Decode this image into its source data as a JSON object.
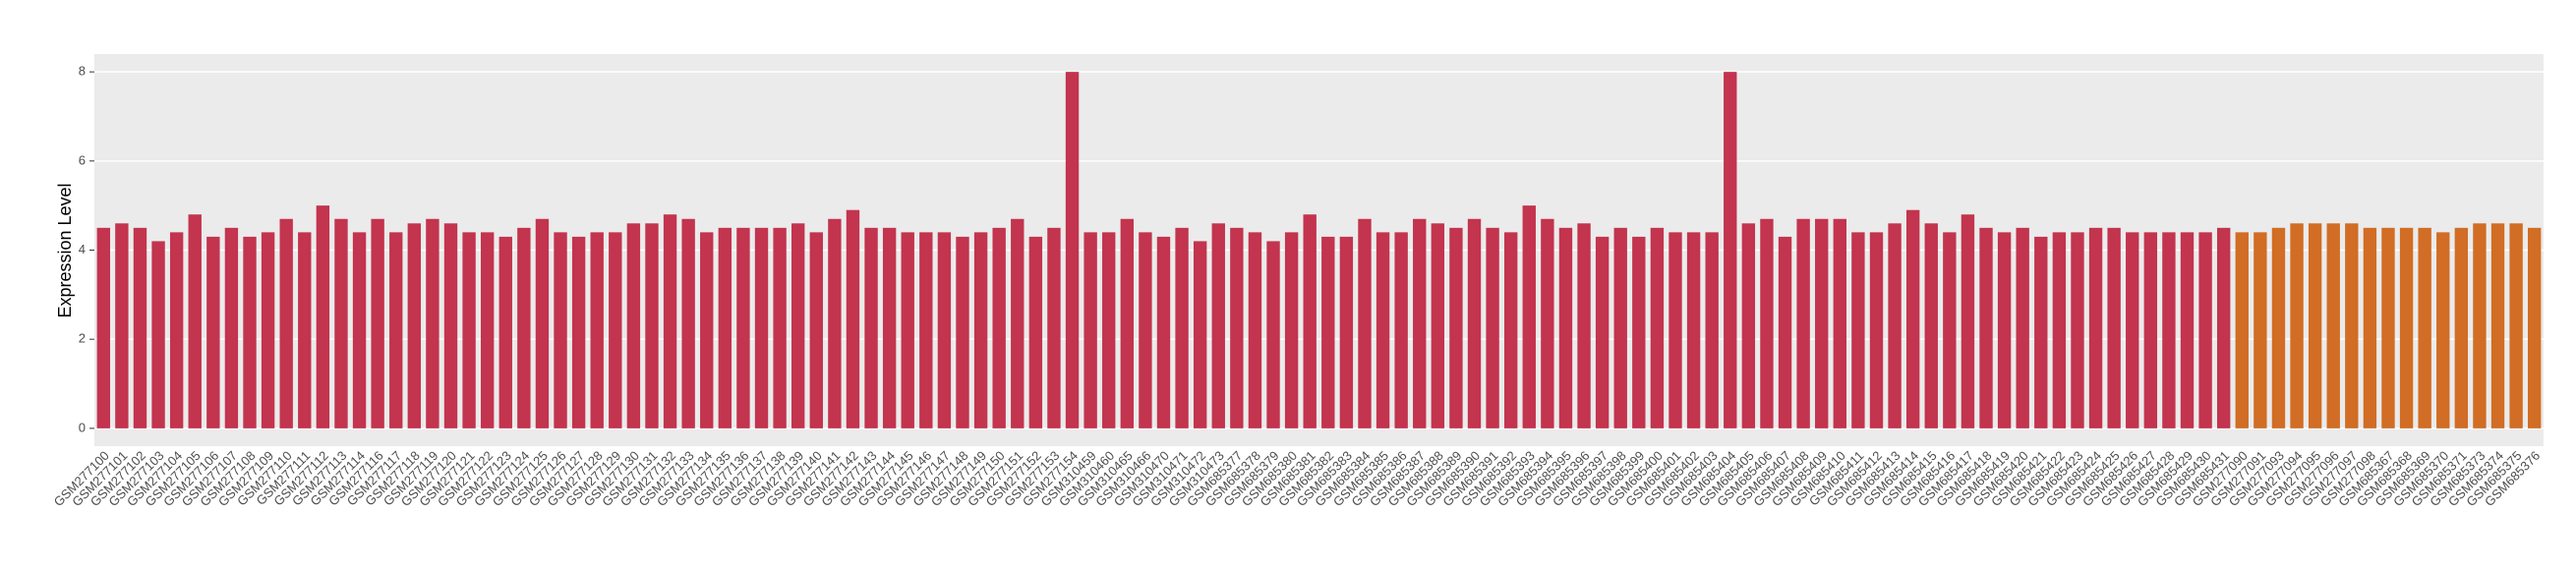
{
  "chart_data": {
    "type": "bar",
    "y_label": "Expression Level",
    "categories": [
      "GSM277100",
      "GSM277101",
      "GSM277102",
      "GSM277103",
      "GSM277104",
      "GSM277105",
      "GSM277106",
      "GSM277107",
      "GSM277108",
      "GSM277109",
      "GSM277110",
      "GSM277111",
      "GSM277112",
      "GSM277113",
      "GSM277114",
      "GSM277116",
      "GSM277117",
      "GSM277118",
      "GSM277119",
      "GSM277120",
      "GSM277121",
      "GSM277122",
      "GSM277123",
      "GSM277124",
      "GSM277125",
      "GSM277126",
      "GSM277127",
      "GSM277128",
      "GSM277129",
      "GSM277130",
      "GSM277131",
      "GSM277132",
      "GSM277133",
      "GSM277134",
      "GSM277135",
      "GSM277136",
      "GSM277137",
      "GSM277138",
      "GSM277139",
      "GSM277140",
      "GSM277141",
      "GSM277142",
      "GSM277143",
      "GSM277144",
      "GSM277145",
      "GSM277146",
      "GSM277147",
      "GSM277148",
      "GSM277149",
      "GSM277150",
      "GSM277151",
      "GSM277152",
      "GSM277153",
      "GSM277154",
      "GSM310459",
      "GSM310460",
      "GSM310465",
      "GSM310466",
      "GSM310470",
      "GSM310471",
      "GSM310472",
      "GSM310473",
      "GSM685377",
      "GSM685378",
      "GSM685379",
      "GSM685380",
      "GSM685381",
      "GSM685382",
      "GSM685383",
      "GSM685384",
      "GSM685385",
      "GSM685386",
      "GSM685387",
      "GSM685388",
      "GSM685389",
      "GSM685390",
      "GSM685391",
      "GSM685392",
      "GSM685393",
      "GSM685394",
      "GSM685395",
      "GSM685396",
      "GSM685397",
      "GSM685398",
      "GSM685399",
      "GSM685400",
      "GSM685401",
      "GSM685402",
      "GSM685403",
      "GSM685404",
      "GSM685405",
      "GSM685406",
      "GSM685407",
      "GSM685408",
      "GSM685409",
      "GSM685410",
      "GSM685411",
      "GSM685412",
      "GSM685413",
      "GSM685414",
      "GSM685415",
      "GSM685416",
      "GSM685417",
      "GSM685418",
      "GSM685419",
      "GSM685420",
      "GSM685421",
      "GSM685422",
      "GSM685423",
      "GSM685424",
      "GSM685425",
      "GSM685426",
      "GSM685427",
      "GSM685428",
      "GSM685429",
      "GSM685430",
      "GSM685431",
      "GSM277090",
      "GSM277091",
      "GSM277093",
      "GSM277094",
      "GSM277095",
      "GSM277096",
      "GSM277097",
      "GSM277098",
      "GSM685367",
      "GSM685368",
      "GSM685369",
      "GSM685370",
      "GSM685371",
      "GSM685373",
      "GSM685374",
      "GSM685375",
      "GSM685376"
    ],
    "values": [
      4.5,
      4.6,
      4.5,
      4.2,
      4.4,
      4.8,
      4.3,
      4.5,
      4.3,
      4.4,
      4.7,
      4.4,
      5.0,
      4.7,
      4.4,
      4.7,
      4.4,
      4.6,
      4.7,
      4.6,
      4.4,
      4.4,
      4.3,
      4.5,
      4.7,
      4.4,
      4.3,
      4.4,
      4.4,
      4.6,
      4.6,
      4.8,
      4.7,
      4.4,
      4.5,
      4.5,
      4.5,
      4.5,
      4.6,
      4.4,
      4.7,
      4.9,
      4.5,
      4.5,
      4.4,
      4.4,
      4.4,
      4.3,
      4.4,
      4.5,
      4.7,
      4.3,
      4.5,
      8.0,
      4.4,
      4.4,
      4.7,
      4.4,
      4.3,
      4.5,
      4.2,
      4.6,
      4.5,
      4.4,
      4.2,
      4.4,
      4.8,
      4.3,
      4.3,
      4.7,
      4.4,
      4.4,
      4.7,
      4.6,
      4.5,
      4.7,
      4.5,
      4.4,
      5.0,
      4.7,
      4.5,
      4.6,
      4.3,
      4.5,
      4.3,
      4.5,
      4.4,
      4.4,
      4.4,
      8.0,
      4.6,
      4.7,
      4.3,
      4.7,
      4.7,
      4.7,
      4.4,
      4.4,
      4.6,
      4.9,
      4.6,
      4.4,
      4.8,
      4.5,
      4.4,
      4.5,
      4.3,
      4.4,
      4.4,
      4.5,
      4.5,
      4.4,
      4.4,
      4.4,
      4.4,
      4.4,
      4.5,
      4.4,
      4.4,
      4.5,
      4.6,
      4.6,
      4.6,
      4.6,
      4.5,
      4.5,
      4.5,
      4.5,
      4.4,
      4.5,
      4.6,
      4.6,
      4.6,
      4.5
    ],
    "colors": [
      "#c3344e",
      "#c3344e",
      "#c3344e",
      "#c3344e",
      "#c3344e",
      "#c3344e",
      "#c3344e",
      "#c3344e",
      "#c3344e",
      "#c3344e",
      "#c3344e",
      "#c3344e",
      "#c3344e",
      "#c3344e",
      "#c3344e",
      "#c3344e",
      "#c3344e",
      "#c3344e",
      "#c3344e",
      "#c3344e",
      "#c3344e",
      "#c3344e",
      "#c3344e",
      "#c3344e",
      "#c3344e",
      "#c3344e",
      "#c3344e",
      "#c3344e",
      "#c3344e",
      "#c3344e",
      "#c3344e",
      "#c3344e",
      "#c3344e",
      "#c3344e",
      "#c3344e",
      "#c3344e",
      "#c3344e",
      "#c3344e",
      "#c3344e",
      "#c3344e",
      "#c3344e",
      "#c3344e",
      "#c3344e",
      "#c3344e",
      "#c3344e",
      "#c3344e",
      "#c3344e",
      "#c3344e",
      "#c3344e",
      "#c3344e",
      "#c3344e",
      "#c3344e",
      "#c3344e",
      "#c3344e",
      "#c3344e",
      "#c3344e",
      "#c3344e",
      "#c3344e",
      "#c3344e",
      "#c3344e",
      "#c3344e",
      "#c3344e",
      "#c3344e",
      "#c3344e",
      "#c3344e",
      "#c3344e",
      "#c3344e",
      "#c3344e",
      "#c3344e",
      "#c3344e",
      "#c3344e",
      "#c3344e",
      "#c3344e",
      "#c3344e",
      "#c3344e",
      "#c3344e",
      "#c3344e",
      "#c3344e",
      "#c3344e",
      "#c3344e",
      "#c3344e",
      "#c3344e",
      "#c3344e",
      "#c3344e",
      "#c3344e",
      "#c3344e",
      "#c3344e",
      "#c3344e",
      "#c3344e",
      "#c3344e",
      "#c3344e",
      "#c3344e",
      "#c3344e",
      "#c3344e",
      "#c3344e",
      "#c3344e",
      "#c3344e",
      "#c3344e",
      "#c3344e",
      "#c3344e",
      "#c3344e",
      "#c3344e",
      "#c3344e",
      "#c3344e",
      "#c3344e",
      "#c3344e",
      "#c3344e",
      "#c3344e",
      "#c3344e",
      "#c3344e",
      "#c3344e",
      "#c3344e",
      "#c3344e",
      "#c3344e",
      "#c3344e",
      "#c3344e",
      "#c3344e",
      "#d16d24",
      "#d16d24",
      "#d16d24",
      "#d16d24",
      "#d16d24",
      "#d16d24",
      "#d16d24",
      "#d16d24",
      "#d16d24",
      "#d16d24",
      "#d16d24",
      "#d16d24",
      "#d16d24",
      "#d16d24",
      "#d16d24",
      "#d16d24",
      "#d16d24"
    ],
    "ylim": [
      -0.4,
      8.4
    ],
    "yticks": [
      0,
      2,
      4,
      6,
      8
    ],
    "grid": true
  }
}
